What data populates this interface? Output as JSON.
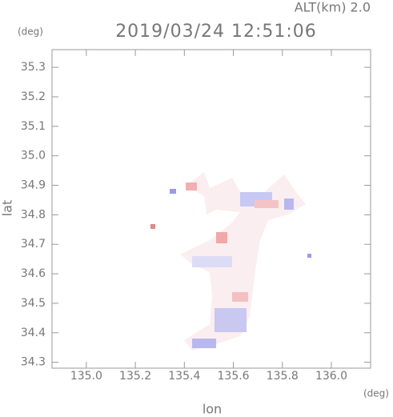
{
  "chart_data": {
    "type": "map",
    "title": "2019/03/24 12:51:06",
    "annotation": "ALT(km) 2.0",
    "x_label": "lon",
    "x_unit": "(deg)",
    "y_label": "lat",
    "y_unit": "(deg)",
    "xlim": [
      134.86,
      136.16
    ],
    "xticks": [
      {
        "value": 135.0,
        "label": "135.0"
      },
      135.2,
      135.4,
      135.6,
      135.8,
      {
        "value": 136.0,
        "label": "136.0"
      }
    ],
    "ylim": [
      34.28,
      35.36
    ],
    "yticks": [
      34.3,
      34.4,
      34.5,
      34.6,
      34.7,
      34.8,
      34.9,
      {
        "value": 35.0,
        "label": "35.0"
      },
      35.1,
      35.2,
      35.3
    ]
  }
}
